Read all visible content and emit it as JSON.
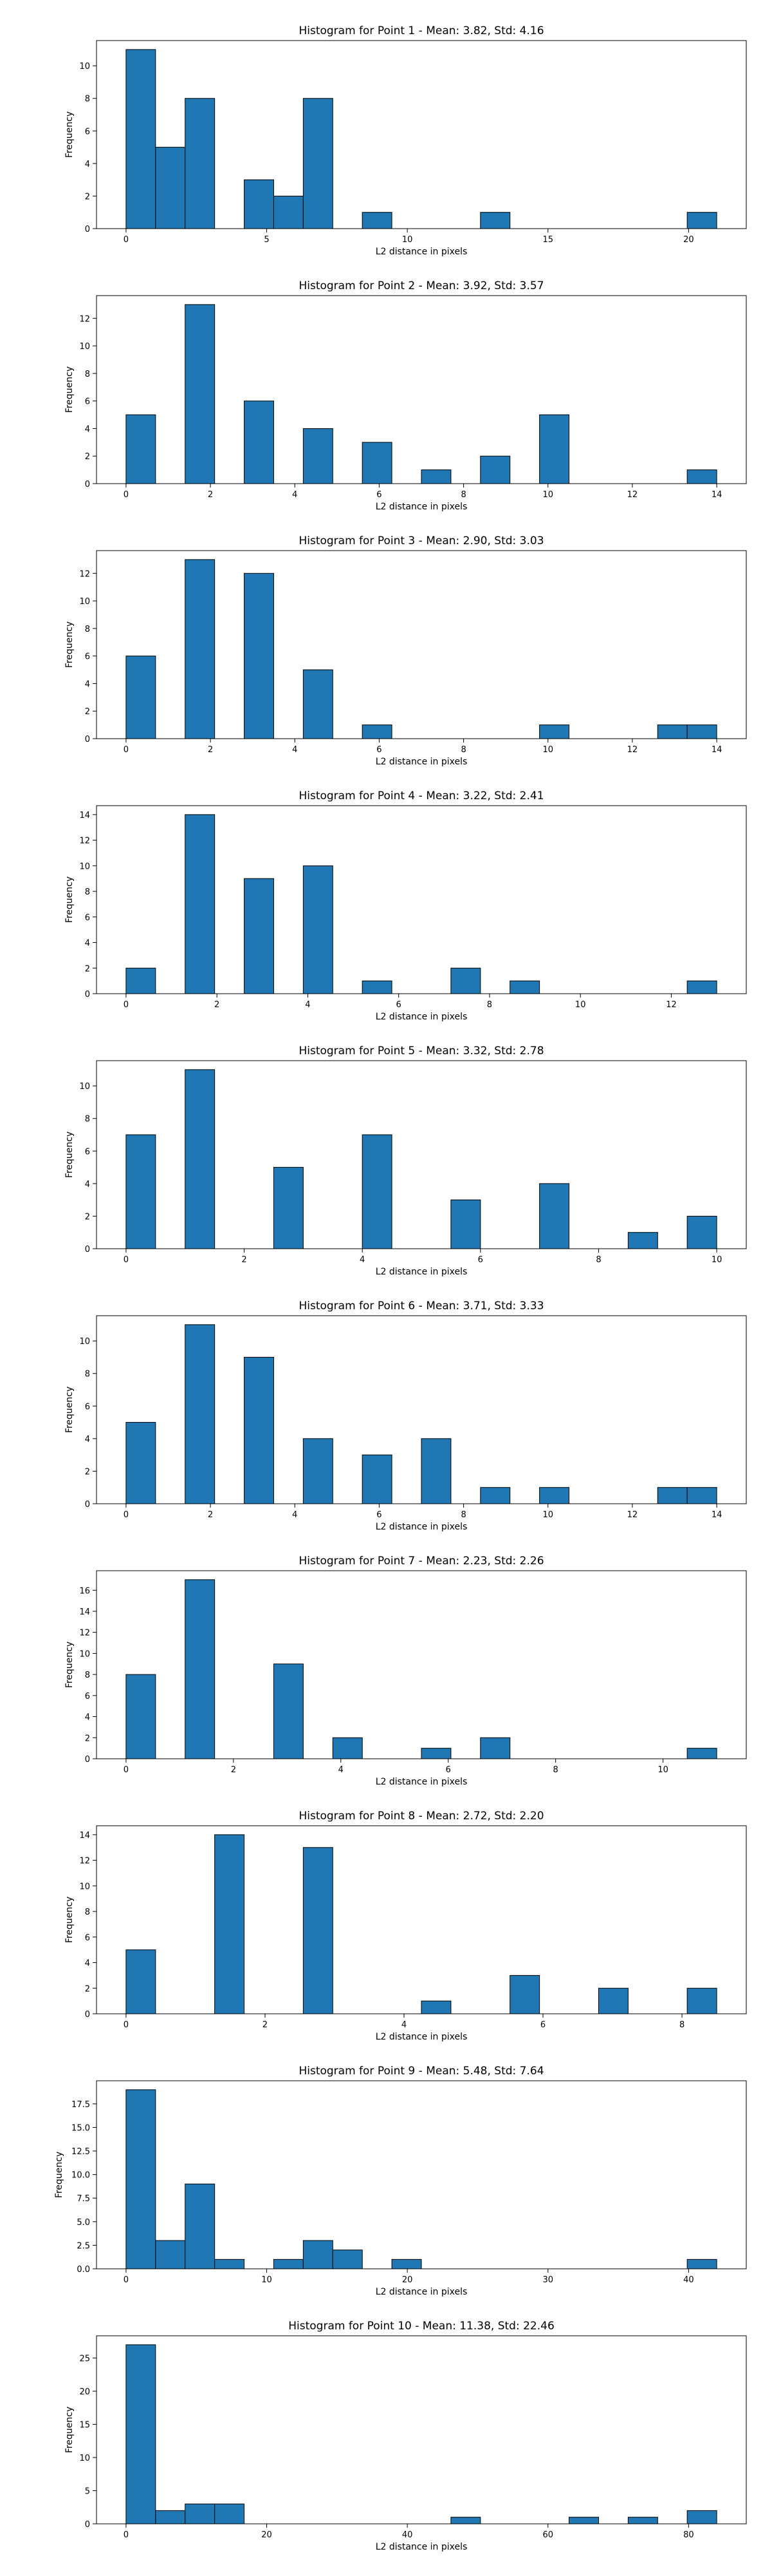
{
  "chart_data": [
    {
      "type": "bar",
      "title": "Histogram for Point 1 - Mean: 3.82, Std: 4.16",
      "xlabel": "L2 distance in pixels",
      "ylabel": "Frequency",
      "xlim": [
        -1.05,
        22.05
      ],
      "ylim": [
        0,
        11.55
      ],
      "xticks": [
        0,
        5,
        10,
        15,
        20
      ],
      "xtick_labels": [
        "0",
        "5",
        "10",
        "15",
        "20"
      ],
      "yticks": [
        0,
        2,
        4,
        6,
        8,
        10
      ],
      "ytick_labels": [
        "0",
        "2",
        "4",
        "6",
        "8",
        "10"
      ],
      "bin_edges": [
        0,
        1.05,
        2.1,
        3.15,
        4.2,
        5.25,
        6.3,
        7.35,
        8.4,
        9.45,
        10.5,
        11.55,
        12.6,
        13.65,
        14.7,
        15.75,
        16.8,
        17.85,
        18.9,
        19.95,
        21.0
      ],
      "values": [
        11,
        5,
        8,
        0,
        3,
        2,
        8,
        0,
        1,
        0,
        0,
        0,
        1,
        0,
        0,
        0,
        0,
        0,
        0,
        1
      ],
      "grid": false,
      "color": "#1f77b4"
    },
    {
      "type": "bar",
      "title": "Histogram for Point 2 - Mean: 3.92, Std: 3.57",
      "xlabel": "L2 distance in pixels",
      "ylabel": "Frequency",
      "xlim": [
        -0.7,
        14.7
      ],
      "ylim": [
        0,
        13.65
      ],
      "xticks": [
        0,
        2,
        4,
        6,
        8,
        10,
        12,
        14
      ],
      "xtick_labels": [
        "0",
        "2",
        "4",
        "6",
        "8",
        "10",
        "12",
        "14"
      ],
      "yticks": [
        0,
        2,
        4,
        6,
        8,
        10,
        12
      ],
      "ytick_labels": [
        "0",
        "2",
        "4",
        "6",
        "8",
        "10",
        "12"
      ],
      "bin_edges": [
        0,
        0.7,
        1.4,
        2.1,
        2.8,
        3.5,
        4.2,
        4.9,
        5.6,
        6.3,
        7.0,
        7.7,
        8.4,
        9.1,
        9.8,
        10.5,
        11.2,
        11.9,
        12.6,
        13.3,
        14.0
      ],
      "values": [
        5,
        0,
        13,
        0,
        6,
        0,
        4,
        0,
        3,
        0,
        1,
        0,
        2,
        0,
        5,
        0,
        0,
        0,
        0,
        1
      ],
      "grid": false,
      "color": "#1f77b4"
    },
    {
      "type": "bar",
      "title": "Histogram for Point 3 - Mean: 2.90, Std: 3.03",
      "xlabel": "L2 distance in pixels",
      "ylabel": "Frequency",
      "xlim": [
        -0.7,
        14.7
      ],
      "ylim": [
        0,
        13.65
      ],
      "xticks": [
        0,
        2,
        4,
        6,
        8,
        10,
        12,
        14
      ],
      "xtick_labels": [
        "0",
        "2",
        "4",
        "6",
        "8",
        "10",
        "12",
        "14"
      ],
      "yticks": [
        0,
        2,
        4,
        6,
        8,
        10,
        12
      ],
      "ytick_labels": [
        "0",
        "2",
        "4",
        "6",
        "8",
        "10",
        "12"
      ],
      "bin_edges": [
        0,
        0.7,
        1.4,
        2.1,
        2.8,
        3.5,
        4.2,
        4.9,
        5.6,
        6.3,
        7.0,
        7.7,
        8.4,
        9.1,
        9.8,
        10.5,
        11.2,
        11.9,
        12.6,
        13.3,
        14.0
      ],
      "values": [
        6,
        0,
        13,
        0,
        12,
        0,
        5,
        0,
        1,
        0,
        0,
        0,
        0,
        0,
        1,
        0,
        0,
        0,
        1,
        1
      ],
      "grid": false,
      "color": "#1f77b4"
    },
    {
      "type": "bar",
      "title": "Histogram for Point 4 - Mean: 3.22, Std: 2.41",
      "xlabel": "L2 distance in pixels",
      "ylabel": "Frequency",
      "xlim": [
        -0.65,
        13.65
      ],
      "ylim": [
        0,
        14.7
      ],
      "xticks": [
        0,
        2,
        4,
        6,
        8,
        10,
        12
      ],
      "xtick_labels": [
        "0",
        "2",
        "4",
        "6",
        "8",
        "10",
        "12"
      ],
      "yticks": [
        0,
        2,
        4,
        6,
        8,
        10,
        12,
        14
      ],
      "ytick_labels": [
        "0",
        "2",
        "4",
        "6",
        "8",
        "10",
        "12",
        "14"
      ],
      "bin_edges": [
        0,
        0.65,
        1.3,
        1.95,
        2.6,
        3.25,
        3.9,
        4.55,
        5.2,
        5.85,
        6.5,
        7.15,
        7.8,
        8.45,
        9.1,
        9.75,
        10.4,
        11.05,
        11.7,
        12.35,
        13.0
      ],
      "values": [
        2,
        0,
        14,
        0,
        9,
        0,
        10,
        0,
        1,
        0,
        0,
        2,
        0,
        1,
        0,
        0,
        0,
        0,
        0,
        1
      ],
      "grid": false,
      "color": "#1f77b4"
    },
    {
      "type": "bar",
      "title": "Histogram for Point 5 - Mean: 3.32, Std: 2.78",
      "xlabel": "L2 distance in pixels",
      "ylabel": "Frequency",
      "xlim": [
        -0.5,
        10.5
      ],
      "ylim": [
        0,
        11.55
      ],
      "xticks": [
        0,
        2,
        4,
        6,
        8,
        10
      ],
      "xtick_labels": [
        "0",
        "2",
        "4",
        "6",
        "8",
        "10"
      ],
      "yticks": [
        0,
        2,
        4,
        6,
        8,
        10
      ],
      "ytick_labels": [
        "0",
        "2",
        "4",
        "6",
        "8",
        "10"
      ],
      "bin_edges": [
        0,
        0.5,
        1.0,
        1.5,
        2.0,
        2.5,
        3.0,
        3.5,
        4.0,
        4.5,
        5.0,
        5.5,
        6.0,
        6.5,
        7.0,
        7.5,
        8.0,
        8.5,
        9.0,
        9.5,
        10.0
      ],
      "values": [
        7,
        0,
        11,
        0,
        0,
        5,
        0,
        0,
        7,
        0,
        0,
        3,
        0,
        0,
        4,
        0,
        0,
        1,
        0,
        2
      ],
      "grid": false,
      "color": "#1f77b4"
    },
    {
      "type": "bar",
      "title": "Histogram for Point 6 - Mean: 3.71, Std: 3.33",
      "xlabel": "L2 distance in pixels",
      "ylabel": "Frequency",
      "xlim": [
        -0.7,
        14.7
      ],
      "ylim": [
        0,
        11.55
      ],
      "xticks": [
        0,
        2,
        4,
        6,
        8,
        10,
        12,
        14
      ],
      "xtick_labels": [
        "0",
        "2",
        "4",
        "6",
        "8",
        "10",
        "12",
        "14"
      ],
      "yticks": [
        0,
        2,
        4,
        6,
        8,
        10
      ],
      "ytick_labels": [
        "0",
        "2",
        "4",
        "6",
        "8",
        "10"
      ],
      "bin_edges": [
        0,
        0.7,
        1.4,
        2.1,
        2.8,
        3.5,
        4.2,
        4.9,
        5.6,
        6.3,
        7.0,
        7.7,
        8.4,
        9.1,
        9.8,
        10.5,
        11.2,
        11.9,
        12.6,
        13.3,
        14.0
      ],
      "values": [
        5,
        0,
        11,
        0,
        9,
        0,
        4,
        0,
        3,
        0,
        4,
        0,
        1,
        0,
        1,
        0,
        0,
        0,
        1,
        1
      ],
      "grid": false,
      "color": "#1f77b4"
    },
    {
      "type": "bar",
      "title": "Histogram for Point 7 - Mean: 2.23, Std: 2.26",
      "xlabel": "L2 distance in pixels",
      "ylabel": "Frequency",
      "xlim": [
        -0.55,
        11.55
      ],
      "ylim": [
        0,
        17.85
      ],
      "xticks": [
        0,
        2,
        4,
        6,
        8,
        10
      ],
      "xtick_labels": [
        "0",
        "2",
        "4",
        "6",
        "8",
        "10"
      ],
      "yticks": [
        0,
        2,
        4,
        6,
        8,
        10,
        12,
        14,
        16
      ],
      "ytick_labels": [
        "0",
        "2",
        "4",
        "6",
        "8",
        "10",
        "12",
        "14",
        "16"
      ],
      "bin_edges": [
        0,
        0.55,
        1.1,
        1.65,
        2.2,
        2.75,
        3.3,
        3.85,
        4.4,
        4.95,
        5.5,
        6.05,
        6.6,
        7.15,
        7.7,
        8.25,
        8.8,
        9.35,
        9.9,
        10.45,
        11.0
      ],
      "values": [
        8,
        0,
        17,
        0,
        0,
        9,
        0,
        2,
        0,
        0,
        1,
        0,
        2,
        0,
        0,
        0,
        0,
        0,
        0,
        1
      ],
      "grid": false,
      "color": "#1f77b4"
    },
    {
      "type": "bar",
      "title": "Histogram for Point 8 - Mean: 2.72, Std: 2.20",
      "xlabel": "L2 distance in pixels",
      "ylabel": "Frequency",
      "xlim": [
        -0.425,
        8.925
      ],
      "ylim": [
        0,
        14.7
      ],
      "xticks": [
        0,
        2,
        4,
        6,
        8
      ],
      "xtick_labels": [
        "0",
        "2",
        "4",
        "6",
        "8"
      ],
      "yticks": [
        0,
        2,
        4,
        6,
        8,
        10,
        12,
        14
      ],
      "ytick_labels": [
        "0",
        "2",
        "4",
        "6",
        "8",
        "10",
        "12",
        "14"
      ],
      "bin_edges": [
        0,
        0.425,
        0.85,
        1.275,
        1.7,
        2.125,
        2.55,
        2.975,
        3.4,
        3.825,
        4.25,
        4.675,
        5.1,
        5.525,
        5.95,
        6.375,
        6.8,
        7.225,
        7.65,
        8.075,
        8.5
      ],
      "values": [
        5,
        0,
        0,
        14,
        0,
        0,
        13,
        0,
        0,
        0,
        1,
        0,
        0,
        3,
        0,
        0,
        2,
        0,
        0,
        2
      ],
      "grid": false,
      "color": "#1f77b4"
    },
    {
      "type": "bar",
      "title": "Histogram for Point 9 - Mean: 5.48, Std: 7.64",
      "xlabel": "L2 distance in pixels",
      "ylabel": "Frequency",
      "xlim": [
        -2.1,
        44.1
      ],
      "ylim": [
        0,
        19.95
      ],
      "xticks": [
        0,
        10,
        20,
        30,
        40
      ],
      "xtick_labels": [
        "0",
        "10",
        "20",
        "30",
        "40"
      ],
      "yticks": [
        0,
        2.5,
        5,
        7.5,
        10,
        12.5,
        15,
        17.5
      ],
      "ytick_labels": [
        "0.0",
        "2.5",
        "5.0",
        "7.5",
        "10.0",
        "12.5",
        "15.0",
        "17.5"
      ],
      "bin_edges": [
        0,
        2.1,
        4.2,
        6.3,
        8.4,
        10.5,
        12.6,
        14.7,
        16.8,
        18.9,
        21.0,
        23.1,
        25.2,
        27.3,
        29.4,
        31.5,
        33.6,
        35.7,
        37.8,
        39.9,
        42.0
      ],
      "values": [
        19,
        3,
        9,
        1,
        0,
        1,
        3,
        2,
        0,
        1,
        0,
        0,
        0,
        0,
        0,
        0,
        0,
        0,
        0,
        1
      ],
      "grid": false,
      "color": "#1f77b4"
    },
    {
      "type": "bar",
      "title": "Histogram for Point 10 - Mean: 11.38, Std: 22.46",
      "xlabel": "L2 distance in pixels",
      "ylabel": "Frequency",
      "xlim": [
        -4.2,
        88.2
      ],
      "ylim": [
        0,
        28.35
      ],
      "xticks": [
        0,
        20,
        40,
        60,
        80
      ],
      "xtick_labels": [
        "0",
        "20",
        "40",
        "60",
        "80"
      ],
      "yticks": [
        0,
        5,
        10,
        15,
        20,
        25
      ],
      "ytick_labels": [
        "0",
        "5",
        "10",
        "15",
        "20",
        "25"
      ],
      "bin_edges": [
        0,
        4.2,
        8.4,
        12.6,
        16.8,
        21.0,
        25.2,
        29.4,
        33.6,
        37.8,
        42.0,
        46.2,
        50.4,
        54.6,
        58.8,
        63.0,
        67.2,
        71.4,
        75.6,
        79.8,
        84.0
      ],
      "values": [
        27,
        2,
        3,
        3,
        0,
        0,
        0,
        0,
        0,
        0,
        0,
        1,
        0,
        0,
        0,
        1,
        0,
        1,
        0,
        2
      ],
      "grid": false,
      "color": "#1f77b4"
    }
  ]
}
